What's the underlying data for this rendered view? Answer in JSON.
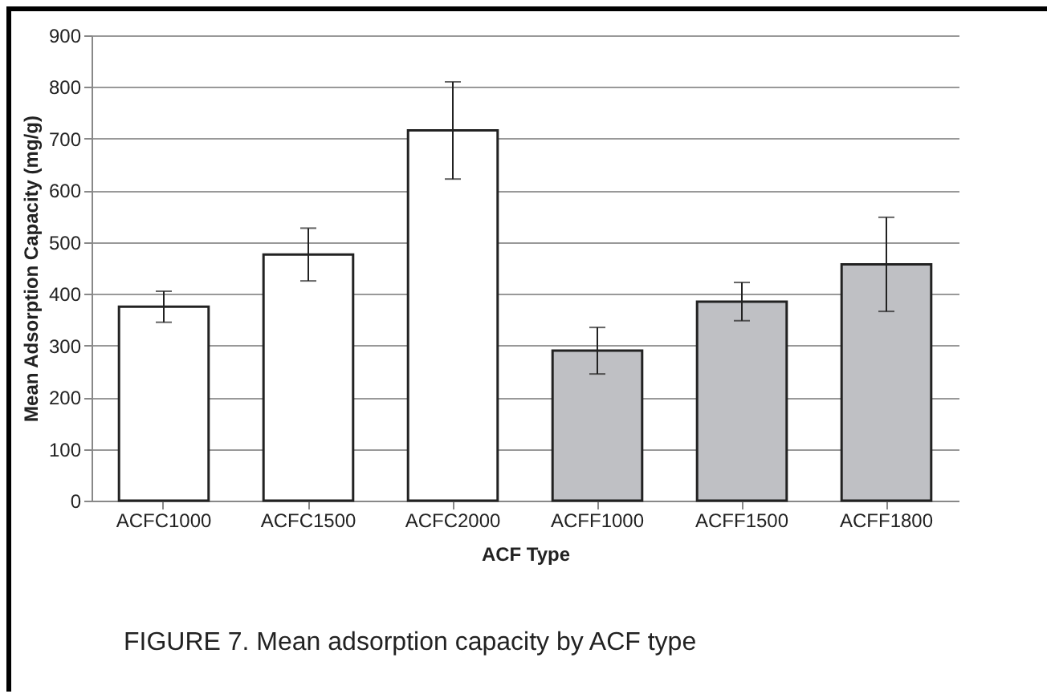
{
  "chart_data": {
    "type": "bar",
    "xlabel": "ACF Type",
    "ylabel": "Mean Adsorption Capacity (mg/g)",
    "categories": [
      "ACFC1000",
      "ACFC1500",
      "ACFC2000",
      "ACFF1000",
      "ACFF1500",
      "ACFF1800"
    ],
    "values": [
      375,
      476,
      716,
      290,
      385,
      457
    ],
    "errors": [
      30,
      51,
      94,
      45,
      37,
      91
    ],
    "colors": [
      "#ffffff",
      "#ffffff",
      "#ffffff",
      "#bfc0c4",
      "#bfc0c4",
      "#bfc0c4"
    ],
    "ylim": [
      0,
      900
    ],
    "yticks": [
      0,
      100,
      200,
      300,
      400,
      500,
      600,
      700,
      800,
      900
    ],
    "grid": "y",
    "annotations": [
      "FIGURE 7.   Mean adsorption capacity by ACF type"
    ]
  }
}
